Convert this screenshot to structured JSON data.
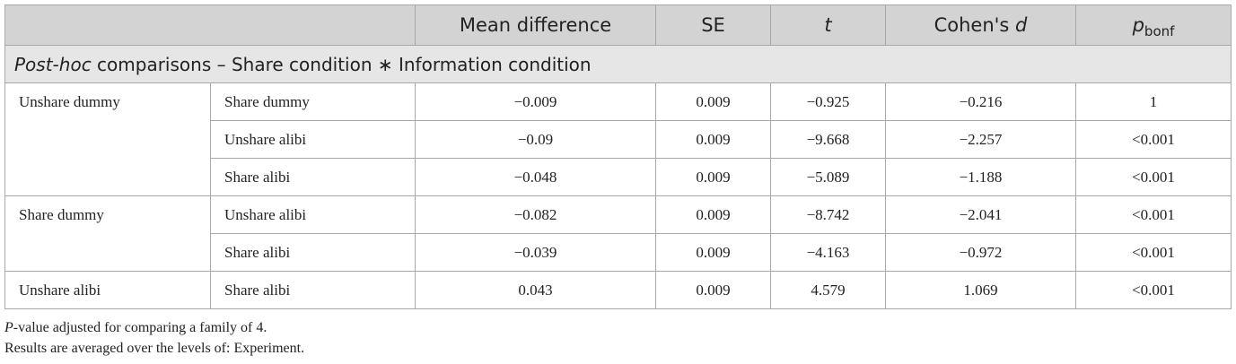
{
  "header": {
    "col_mean_diff": "Mean difference",
    "col_se": "SE",
    "col_t": "t",
    "col_d_prefix": "Cohen's",
    "col_d_var": "d",
    "col_p_main": "p",
    "col_p_sub": "bonf"
  },
  "section": {
    "italic": "Post-hoc",
    "rest": " comparisons – Share condition ∗ Information condition"
  },
  "rows": [
    {
      "group": "Unshare dummy",
      "comp": "Share dummy",
      "md": "−0.009",
      "se": "0.009",
      "t": "−0.925",
      "d": "−0.216",
      "p": "1"
    },
    {
      "group": "",
      "comp": "Unshare alibi",
      "md": "−0.09",
      "se": "0.009",
      "t": "−9.668",
      "d": "−2.257",
      "p": "<0.001"
    },
    {
      "group": "",
      "comp": "Share alibi",
      "md": "−0.048",
      "se": "0.009",
      "t": "−5.089",
      "d": "−1.188",
      "p": "<0.001"
    },
    {
      "group": "Share dummy",
      "comp": "Unshare alibi",
      "md": "−0.082",
      "se": "0.009",
      "t": "−8.742",
      "d": "−2.041",
      "p": "<0.001"
    },
    {
      "group": "",
      "comp": "Share alibi",
      "md": "−0.039",
      "se": "0.009",
      "t": "−4.163",
      "d": "−0.972",
      "p": "<0.001"
    },
    {
      "group": "Unshare alibi",
      "comp": "Share alibi",
      "md": "0.043",
      "se": "0.009",
      "t": "4.579",
      "d": "1.069",
      "p": "<0.001"
    }
  ],
  "notes": {
    "line1_italic": "P",
    "line1_rest": "-value adjusted for comparing a family of 4.",
    "line2": "Results are averaged over the levels of: Experiment."
  }
}
